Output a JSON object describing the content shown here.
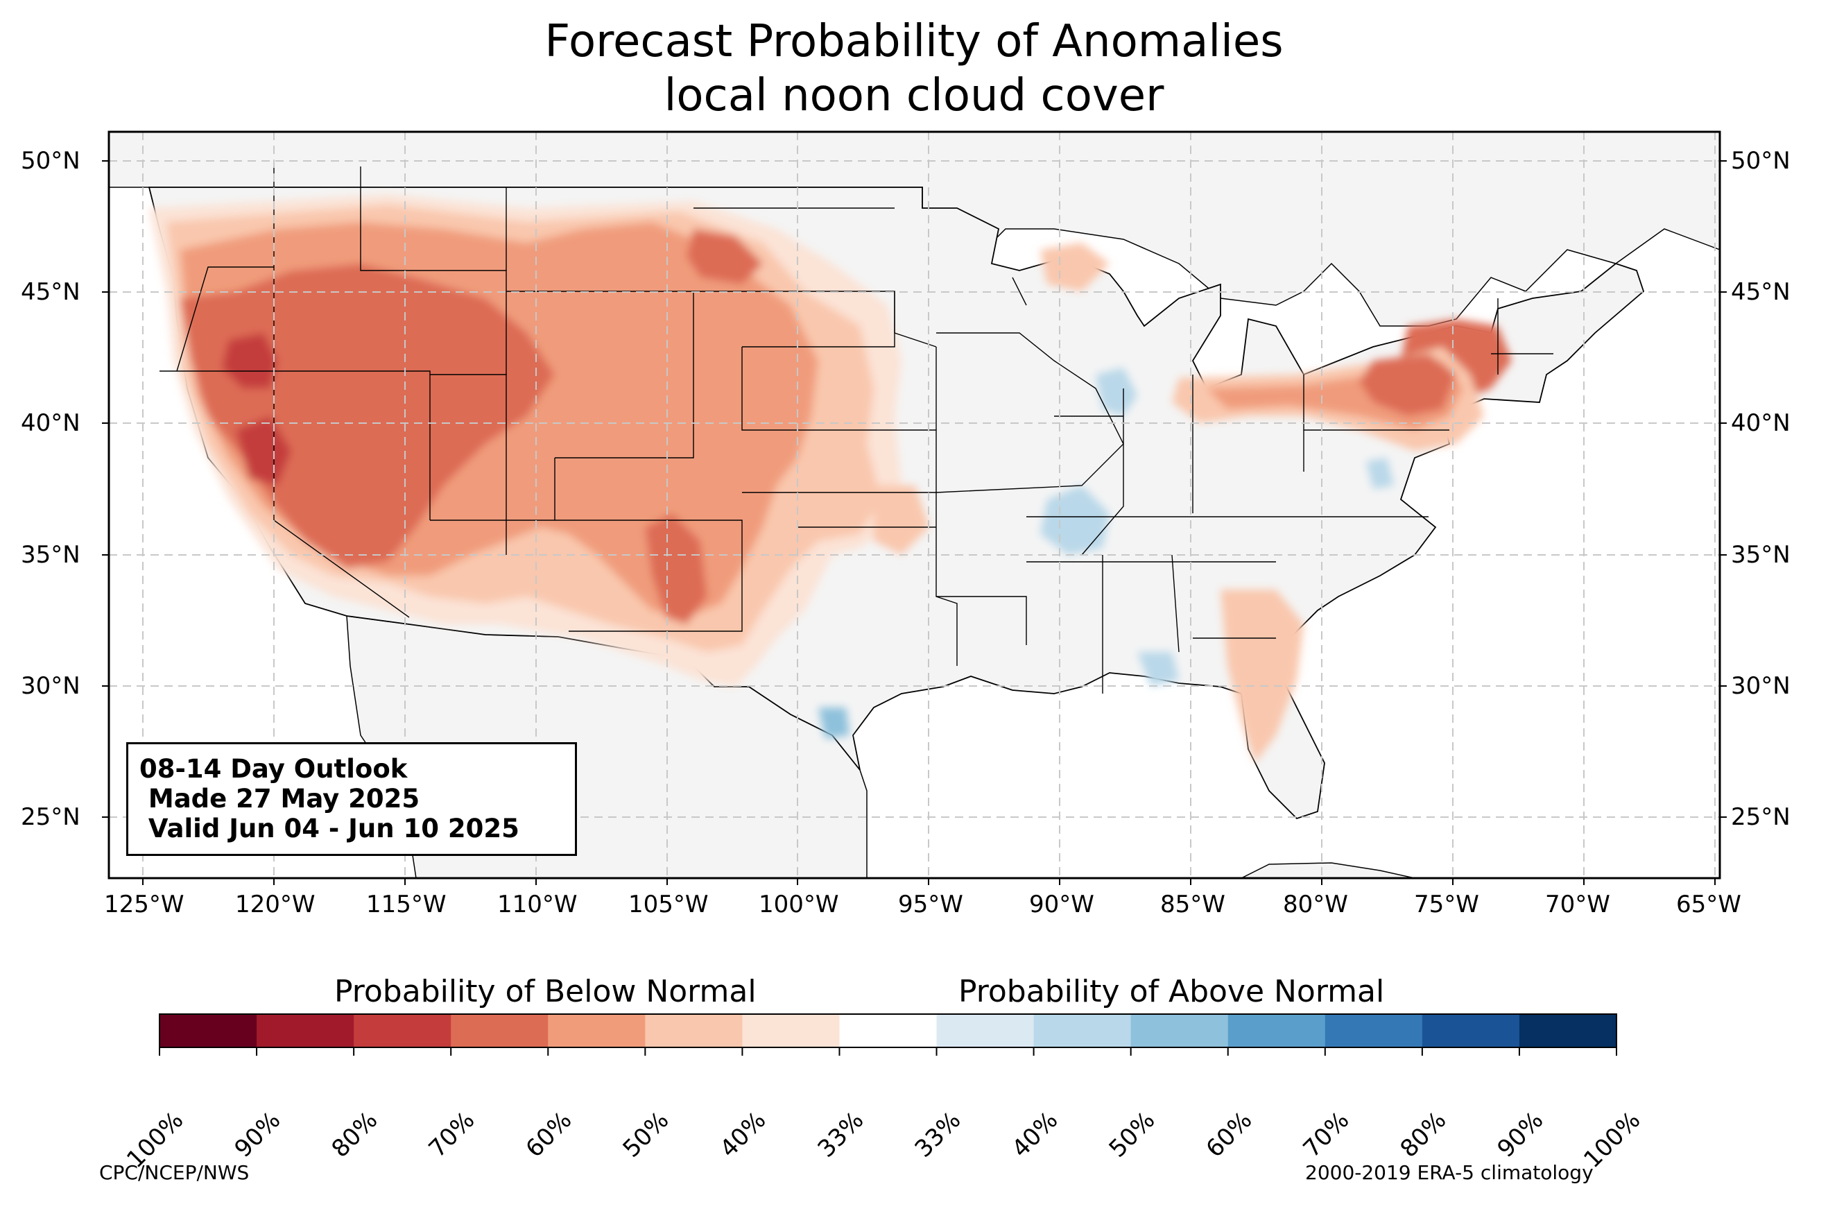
{
  "title": {
    "line1": "Forecast Probability of Anomalies",
    "line2": "local noon cloud cover"
  },
  "outlook_box": {
    "line1": "08-14 Day Outlook",
    "line2": " Made 27 May 2025",
    "line3": " Valid Jun 04 - Jun 10 2025"
  },
  "axes": {
    "lat_labels": [
      "50°N",
      "45°N",
      "40°N",
      "35°N",
      "30°N",
      "25°N"
    ],
    "lon_labels": [
      "125°W",
      "120°W",
      "115°W",
      "110°W",
      "105°W",
      "100°W",
      "95°W",
      "90°W",
      "85°W",
      "80°W",
      "75°W",
      "70°W",
      "65°W"
    ]
  },
  "colorbar": {
    "below_label": "Probability of Below Normal",
    "above_label": "Probability of Above Normal",
    "tick_labels": [
      "100%",
      "90%",
      "80%",
      "70%",
      "60%",
      "50%",
      "40%",
      "33%",
      "33%",
      "40%",
      "50%",
      "60%",
      "70%",
      "80%",
      "90%",
      "100%"
    ],
    "colors": [
      "#67001f",
      "#a11a2c",
      "#c43c3c",
      "#dd6c54",
      "#f09c7b",
      "#f9c7ad",
      "#fbe3d6",
      "#ffffff",
      "#dbe9f3",
      "#b9d8e9",
      "#8ec1dc",
      "#5a9fcb",
      "#3479b6",
      "#1a5496",
      "#053061"
    ]
  },
  "footer": {
    "left": "CPC/NCEP/NWS",
    "right": "2000-2019 ERA-5 climatology"
  },
  "map": {
    "land_color": "#f4f4f4",
    "ocean_color": "#ffffff"
  }
}
